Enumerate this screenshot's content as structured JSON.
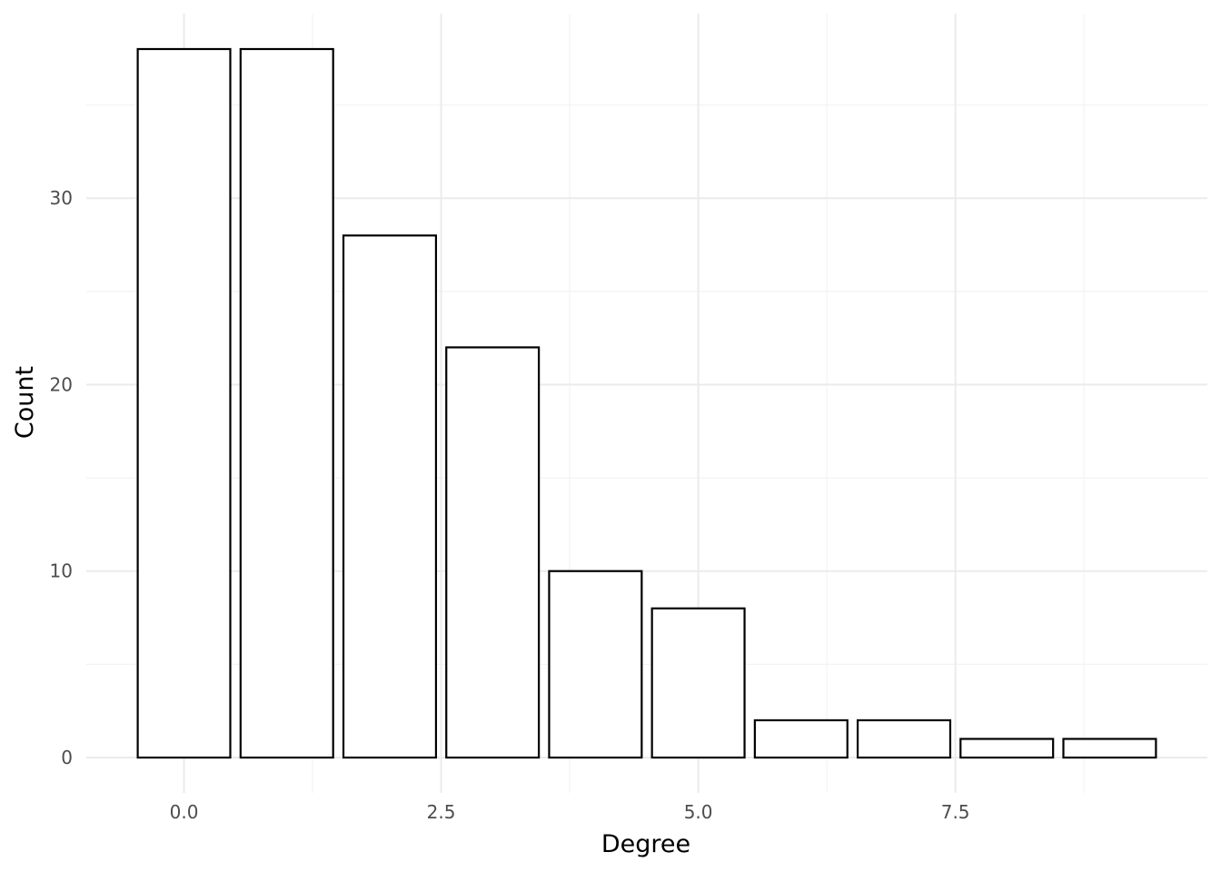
{
  "chart_data": {
    "type": "bar",
    "x": [
      0,
      1,
      2,
      3,
      4,
      5,
      6,
      7,
      8,
      9
    ],
    "values": [
      38,
      38,
      28,
      22,
      10,
      8,
      2,
      2,
      1,
      1
    ],
    "xlabel": "Degree",
    "ylabel": "Count",
    "x_ticks": [
      0,
      2.5,
      5,
      7.5
    ],
    "x_tick_labels": [
      "0.0",
      "2.5",
      "5.0",
      "7.5"
    ],
    "y_ticks": [
      0,
      10,
      20,
      30
    ],
    "y_tick_labels": [
      "0",
      "10",
      "20",
      "30"
    ],
    "xlim": [
      -0.95,
      9.95
    ],
    "ylim": [
      -1.9,
      39.9
    ],
    "grid": true,
    "legend": "none",
    "colors": {
      "bar_fill": "#ffffff",
      "bar_outline": "#000000",
      "grid_major": "#ebebeb",
      "grid_minor": "#f3f3f3",
      "tick_text": "#4d4d4d",
      "axis_title": "#000000"
    }
  }
}
